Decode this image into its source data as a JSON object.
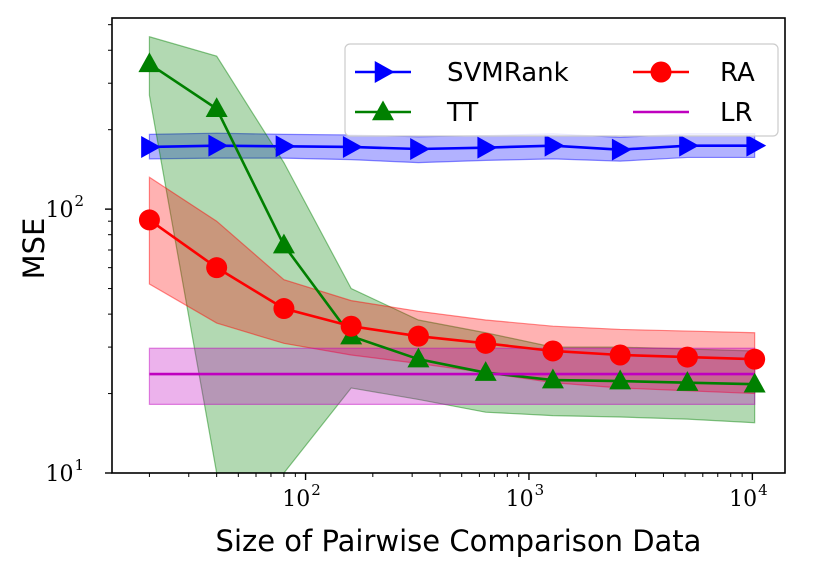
{
  "chart_data": {
    "type": "line",
    "xscale": "log",
    "yscale": "log",
    "xlabel": "Size of Pairwise Comparison Data",
    "ylabel": "MSE",
    "xlim": [
      13.6,
      14000
    ],
    "ylim": [
      10,
      530
    ],
    "xticks": [
      {
        "value": 100,
        "base": "10",
        "exp": "2"
      },
      {
        "value": 1000,
        "base": "10",
        "exp": "3"
      },
      {
        "value": 10000,
        "base": "10",
        "exp": "4"
      }
    ],
    "yticks": [
      {
        "value": 10,
        "base": "10",
        "exp": "1"
      },
      {
        "value": 100,
        "base": "10",
        "exp": "2"
      }
    ],
    "x": [
      20,
      40,
      80,
      160,
      320,
      640,
      1280,
      2560,
      5120,
      10240
    ],
    "series": [
      {
        "name": "SVMRank",
        "color": "#0000ff",
        "marker": "triangle-right",
        "values": [
          172,
          174,
          173,
          172,
          169,
          171,
          174,
          168,
          174,
          174
        ],
        "band_low": [
          155,
          156,
          156,
          154,
          150,
          153,
          155,
          152,
          157,
          157
        ],
        "band_high": [
          192,
          194,
          192,
          191,
          188,
          190,
          193,
          187,
          193,
          193
        ]
      },
      {
        "name": "TT",
        "color": "#008000",
        "marker": "triangle-up",
        "values": [
          355,
          240,
          73,
          33,
          27,
          24,
          22.5,
          22.3,
          22,
          21.7
        ],
        "band_low": [
          270,
          10,
          10,
          21,
          19,
          17,
          16.5,
          16.3,
          16,
          15.5
        ],
        "band_high": [
          450,
          380,
          150,
          50,
          38,
          34,
          30,
          30,
          29.5,
          29
        ]
      },
      {
        "name": "RA",
        "color": "#ff0000",
        "marker": "circle",
        "values": [
          91,
          60,
          42,
          36,
          33,
          31,
          29,
          28,
          27.5,
          27
        ],
        "band_low": [
          52,
          37,
          31,
          28,
          26,
          24,
          22,
          21,
          20.5,
          20
        ],
        "band_high": [
          132,
          90,
          54,
          45,
          41,
          38,
          36,
          35,
          34.5,
          34
        ]
      },
      {
        "name": "LR",
        "color": "#bf00bf",
        "marker": "none",
        "values": [
          23.7,
          23.7,
          23.7,
          23.7,
          23.7,
          23.7,
          23.7,
          23.7,
          23.7,
          23.7
        ],
        "band_low": [
          18.2,
          18.2,
          18.2,
          18.2,
          18.2,
          18.2,
          18.2,
          18.2,
          18.2,
          18.2
        ],
        "band_high": [
          29.7,
          29.7,
          29.7,
          29.7,
          29.7,
          29.7,
          29.7,
          29.7,
          29.7,
          29.7
        ]
      }
    ],
    "legend": {
      "placement": "upper-right",
      "columns": 2,
      "order": [
        "SVMRank",
        "RA",
        "TT",
        "LR"
      ]
    }
  }
}
